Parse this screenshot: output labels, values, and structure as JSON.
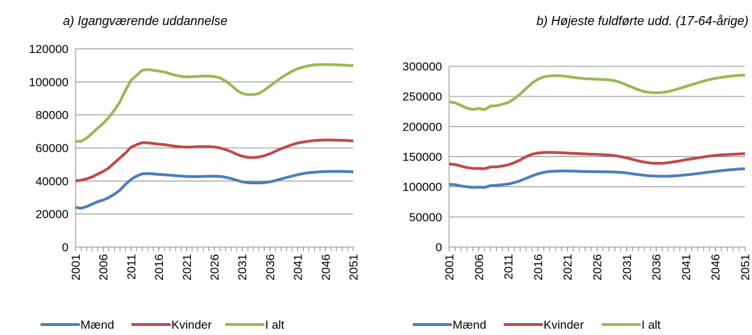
{
  "chart_data": [
    {
      "type": "line",
      "title": "a) Igangværende uddannelse",
      "x": [
        2001,
        2002,
        2003,
        2004,
        2005,
        2006,
        2007,
        2008,
        2009,
        2010,
        2011,
        2012,
        2013,
        2014,
        2015,
        2016,
        2017,
        2018,
        2019,
        2020,
        2021,
        2022,
        2023,
        2024,
        2025,
        2026,
        2027,
        2028,
        2029,
        2030,
        2031,
        2032,
        2033,
        2034,
        2035,
        2036,
        2037,
        2038,
        2039,
        2040,
        2041,
        2042,
        2043,
        2044,
        2045,
        2046,
        2047,
        2048,
        2049,
        2050,
        2051
      ],
      "series": [
        {
          "name": "Mænd",
          "color": "#4a7ebb",
          "values": [
            24000,
            23500,
            24500,
            26000,
            27500,
            28500,
            30000,
            32000,
            34500,
            38000,
            41000,
            43000,
            44300,
            44500,
            44300,
            44000,
            43800,
            43500,
            43200,
            43000,
            42800,
            42700,
            42700,
            42800,
            42900,
            42900,
            42800,
            42300,
            41500,
            40500,
            39500,
            39000,
            38800,
            38800,
            39000,
            39500,
            40300,
            41200,
            42100,
            43000,
            43800,
            44500,
            45000,
            45300,
            45600,
            45700,
            45800,
            45800,
            45800,
            45700,
            45600
          ]
        },
        {
          "name": "Kvinder",
          "color": "#be4b48",
          "values": [
            40000,
            40500,
            41300,
            42500,
            44200,
            45800,
            48000,
            51000,
            54000,
            57000,
            60500,
            62000,
            63200,
            63100,
            62700,
            62300,
            62000,
            61500,
            61000,
            60700,
            60500,
            60600,
            60800,
            60800,
            60800,
            60600,
            60000,
            59000,
            57800,
            56200,
            55000,
            54300,
            54200,
            54500,
            55300,
            56500,
            58000,
            59500,
            60800,
            62000,
            63000,
            63600,
            64100,
            64500,
            64700,
            64800,
            64800,
            64700,
            64600,
            64500,
            64300
          ]
        },
        {
          "name": "I alt",
          "color": "#98b954",
          "values": [
            64000,
            64000,
            66000,
            69000,
            72000,
            75000,
            78500,
            83000,
            88000,
            95000,
            101000,
            104000,
            107000,
            107500,
            107000,
            106500,
            106000,
            105000,
            104000,
            103300,
            103000,
            103200,
            103300,
            103500,
            103500,
            103200,
            102500,
            100500,
            98000,
            95000,
            93000,
            92300,
            92300,
            93000,
            95000,
            97500,
            100000,
            102500,
            104500,
            106500,
            108000,
            109000,
            109800,
            110300,
            110500,
            110500,
            110500,
            110400,
            110200,
            110000,
            109800
          ]
        }
      ],
      "xlim": [
        2001,
        2051
      ],
      "xticks": [
        2001,
        2006,
        2011,
        2016,
        2021,
        2026,
        2031,
        2036,
        2041,
        2046,
        2051
      ],
      "ylim": [
        0,
        120000
      ],
      "yticks": [
        0,
        20000,
        40000,
        60000,
        80000,
        100000,
        120000
      ],
      "grid": true
    },
    {
      "type": "line",
      "title": "b) Højeste fuldførte udd. (17-64-årige)",
      "x": [
        2001,
        2002,
        2003,
        2004,
        2005,
        2006,
        2007,
        2008,
        2009,
        2010,
        2011,
        2012,
        2013,
        2014,
        2015,
        2016,
        2017,
        2018,
        2019,
        2020,
        2021,
        2022,
        2023,
        2024,
        2025,
        2026,
        2027,
        2028,
        2029,
        2030,
        2031,
        2032,
        2033,
        2034,
        2035,
        2036,
        2037,
        2038,
        2039,
        2040,
        2041,
        2042,
        2043,
        2044,
        2045,
        2046,
        2047,
        2048,
        2049,
        2050,
        2051
      ],
      "series": [
        {
          "name": "Mænd",
          "color": "#4a7ebb",
          "values": [
            104000,
            103500,
            101500,
            100000,
            99000,
            99500,
            99000,
            102000,
            102500,
            103500,
            104500,
            107000,
            110000,
            114000,
            118000,
            121500,
            124000,
            125500,
            126000,
            126200,
            126200,
            126000,
            125700,
            125400,
            125200,
            125100,
            125000,
            124800,
            124500,
            124000,
            123000,
            121500,
            120300,
            119000,
            118200,
            117700,
            117500,
            117600,
            118000,
            118800,
            119800,
            120800,
            122000,
            123200,
            124500,
            125700,
            126800,
            127800,
            128700,
            129500,
            130000
          ]
        },
        {
          "name": "Kvinder",
          "color": "#be4b48",
          "values": [
            138000,
            137000,
            134500,
            132000,
            130500,
            130500,
            130000,
            133000,
            133000,
            134500,
            136500,
            140000,
            144500,
            150000,
            154000,
            156000,
            157000,
            157200,
            157000,
            156500,
            156000,
            155500,
            155000,
            154500,
            154000,
            153700,
            153300,
            152800,
            151800,
            150000,
            148000,
            145500,
            143000,
            141000,
            139500,
            139000,
            139000,
            140000,
            141500,
            143000,
            145000,
            146500,
            148000,
            149500,
            151000,
            152000,
            153000,
            153500,
            154000,
            154500,
            155000
          ]
        },
        {
          "name": "I alt",
          "color": "#98b954",
          "values": [
            241000,
            239500,
            235000,
            230500,
            228500,
            230000,
            228000,
            234000,
            234500,
            237000,
            240000,
            246000,
            254000,
            263000,
            272000,
            278500,
            282500,
            284000,
            284500,
            284200,
            283000,
            281500,
            280500,
            279500,
            279000,
            278500,
            278200,
            277500,
            276000,
            273000,
            269000,
            265000,
            261000,
            258000,
            256500,
            256000,
            256500,
            258000,
            260500,
            263500,
            266500,
            269500,
            272500,
            275500,
            278000,
            280000,
            281500,
            283000,
            284000,
            285000,
            285500
          ]
        }
      ],
      "xlim": [
        2001,
        2051
      ],
      "xticks": [
        2001,
        2006,
        2011,
        2016,
        2021,
        2026,
        2031,
        2036,
        2041,
        2046,
        2051
      ],
      "ylim": [
        0,
        300000
      ],
      "yticks": [
        0,
        50000,
        100000,
        150000,
        200000,
        250000,
        300000
      ],
      "grid": true
    }
  ]
}
